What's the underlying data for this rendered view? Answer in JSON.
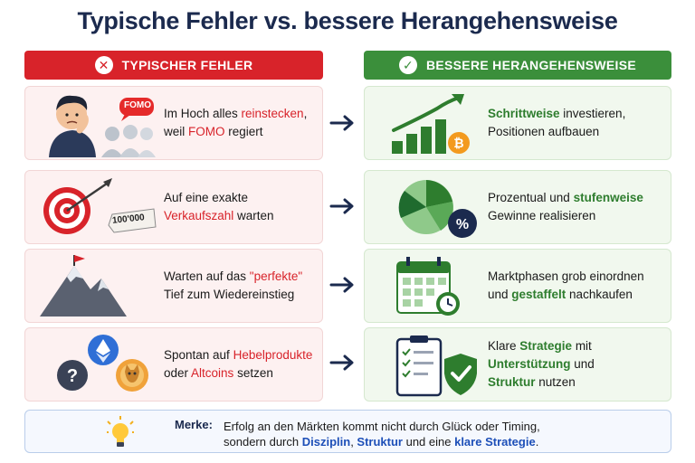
{
  "title": "Typische Fehler vs. bessere Herangehensweise",
  "columns": {
    "left_header": "TYPISCHER FEHLER",
    "right_header": "BESSERE HERANGEHENSWEISE"
  },
  "colors": {
    "red": "#d8232a",
    "green": "#3b8f3b",
    "navy": "#1b2a4e",
    "blue": "#1d4fb8"
  },
  "mistakes": [
    {
      "icon": "fomo-person-icon",
      "badge": "FOMO",
      "parts": [
        "Im Hoch alles ",
        "reinstecken",
        ",",
        "weil ",
        "FOMO",
        " regiert"
      ]
    },
    {
      "icon": "target-icon",
      "tag": "100'000",
      "parts": [
        "Auf eine exakte",
        "Verkaufszahl",
        " warten"
      ]
    },
    {
      "icon": "mountain-flag-icon",
      "parts": [
        "Warten auf das ",
        "\"perfekte\"",
        "Tief zum Wiedereinstieg"
      ]
    },
    {
      "icon": "crypto-coins-icon",
      "parts": [
        "Spontan auf ",
        "Hebelprodukte",
        "oder ",
        "Altcoins",
        " setzen"
      ]
    }
  ],
  "better": [
    {
      "icon": "growth-chart-bitcoin-icon",
      "parts": [
        "Schrittweise",
        " investieren,",
        "Positionen aufbauen"
      ]
    },
    {
      "icon": "pie-chart-percent-icon",
      "parts": [
        "Prozentual und ",
        "stufenweise",
        "Gewinne realisieren"
      ]
    },
    {
      "icon": "calendar-clock-icon",
      "parts": [
        "Marktphasen grob einordnen",
        "und ",
        "gestaffelt",
        " nachkaufen"
      ]
    },
    {
      "icon": "checklist-shield-icon",
      "parts": [
        "Klare ",
        "Strategie",
        " mit",
        "Unterstützung",
        " und",
        "Struktur",
        " nutzen"
      ]
    }
  ],
  "merke": {
    "label": "Merke:",
    "line1": "Erfolg an den Märkten kommt nicht durch Glück oder Timing,",
    "line2_a": "sondern durch ",
    "line2_b": "Disziplin",
    "line2_c": ", ",
    "line2_d": "Struktur",
    "line2_e": " und eine ",
    "line2_f": "klare Strategie",
    "line2_g": "."
  }
}
